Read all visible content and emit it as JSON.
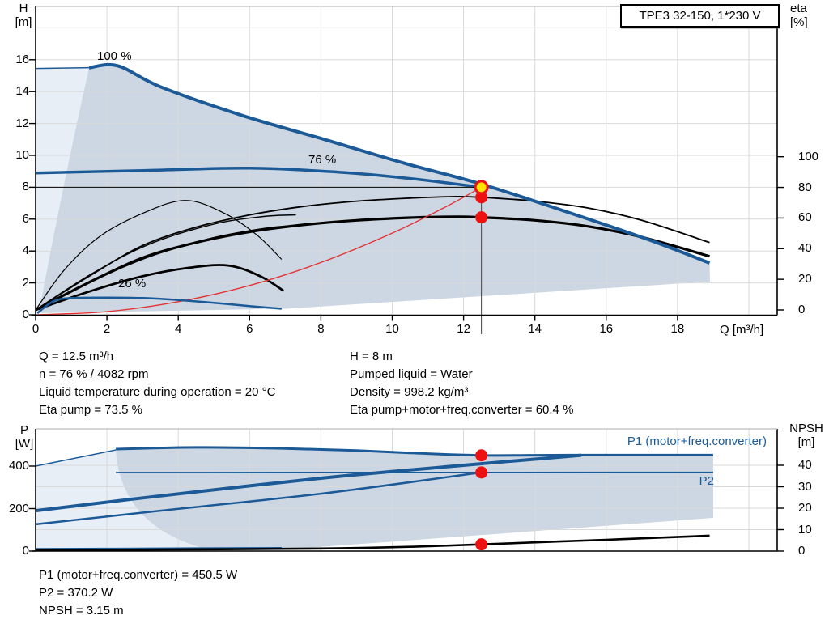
{
  "window": {
    "title_box": "TPE3 32-150, 1*230 V"
  },
  "top_chart": {
    "y_axis_unit_top": "H",
    "y_axis_unit_bottom": "[m]",
    "y2_axis_unit_top": "eta",
    "y2_axis_unit_bottom": "[%]",
    "x_axis_label": "Q [m³/h]",
    "h_ticks": [
      "16",
      "14",
      "12",
      "10",
      "8",
      "6",
      "4",
      "2",
      "0"
    ],
    "h_tick_values": [
      16,
      14,
      12,
      10,
      8,
      6,
      4,
      2,
      0
    ],
    "eta_ticks": [
      "100",
      "80",
      "60",
      "40",
      "20",
      "0"
    ],
    "eta_tick_values": [
      100,
      80,
      60,
      40,
      20,
      0
    ],
    "x_ticks": [
      "0",
      "2",
      "4",
      "6",
      "8",
      "10",
      "12",
      "14",
      "16",
      "18"
    ],
    "x_tick_values": [
      0,
      2,
      4,
      6,
      8,
      10,
      12,
      14,
      16,
      18
    ],
    "curve_labels": {
      "full_speed": "100 %",
      "current_speed": "76 %",
      "min_speed": "26 %"
    }
  },
  "info_block": {
    "left": [
      "Q = 12.5 m³/h",
      "n = 76 % / 4082 rpm",
      "Liquid temperature during operation = 20 °C",
      "Eta pump = 73.5 %"
    ],
    "right": [
      "H = 8 m",
      "Pumped liquid = Water",
      "Density = 998.2 kg/m³",
      "Eta pump+motor+freq.converter = 60.4 %"
    ]
  },
  "bottom_chart": {
    "y_axis_unit_top": "P",
    "y_axis_unit_bottom": "[W]",
    "y2_axis_unit_top": "NPSH",
    "y2_axis_unit_bottom": "[m]",
    "p_ticks": [
      "400",
      "200",
      "0"
    ],
    "p_tick_values": [
      400,
      200,
      0
    ],
    "npsh_ticks": [
      "40",
      "30",
      "20",
      "10",
      "0"
    ],
    "npsh_tick_values": [
      40,
      30,
      20,
      10,
      0
    ],
    "p1_label": "P1 (motor+freq.converter)",
    "p2_label": "P2"
  },
  "results_block": [
    "P1 (motor+freq.converter) = 450.5 W",
    "P2 = 370.2 W",
    "NPSH = 3.15 m"
  ],
  "operating_point": {
    "q_m3h": 12.5,
    "h_m": 8,
    "speed_pct": 76,
    "speed_rpm": 4082,
    "eta_pump_pct": 73.5,
    "eta_total_pct": 60.4,
    "p1_w": 450.5,
    "p2_w": 370.2,
    "npsh_m": 3.15
  },
  "colors": {
    "curve_blue": "#1b5a97",
    "fill_dark": "#cdd7e3",
    "fill_light": "#e8eef6",
    "grid": "#d9d9d9",
    "red": "#e23434",
    "dot_red": "#ee1111",
    "dot_yellow": "#ffe400"
  },
  "chart_data": [
    {
      "type": "line",
      "title": "TPE3 32-150, 1*230 V",
      "xlabel": "Q [m³/h]",
      "ylabel": "H [m]",
      "y2label": "eta [%]",
      "xlim": [
        0,
        20.8
      ],
      "ylim": [
        0,
        19.3
      ],
      "y2lim": [
        0,
        107
      ],
      "grid": true,
      "setpoint": {
        "q": 12.5,
        "h": 8
      },
      "series": [
        {
          "id": "c100flat",
          "name": "Head envelope left edge",
          "axis": "H",
          "x": [
            0,
            1.5
          ],
          "y": [
            15.45,
            15.5
          ]
        },
        {
          "id": "c100",
          "name": "Head curve 100 % speed",
          "axis": "H",
          "x": [
            1.5,
            2.3,
            3.5,
            5.8,
            8.1,
            10.35,
            12.5,
            14.9,
            17.2,
            18.9
          ],
          "y": [
            15.5,
            15.62,
            14.3,
            12.5,
            11.0,
            9.5,
            8.2,
            6.45,
            4.7,
            3.25
          ]
        },
        {
          "id": "c76",
          "name": "Head curve 76 % speed (current)",
          "axis": "H",
          "x": [
            0,
            3,
            6,
            8.5,
            10.5,
            12.5
          ],
          "y": [
            8.9,
            9.05,
            9.2,
            8.95,
            8.55,
            8.0
          ]
        },
        {
          "id": "c26",
          "name": "Head curve 26 % speed (min)",
          "axis": "H",
          "x": [
            0.05,
            0.5,
            1,
            2,
            3,
            4,
            5,
            6,
            6.9
          ],
          "y": [
            0.1,
            0.85,
            1.05,
            1.08,
            1.05,
            0.93,
            0.75,
            0.55,
            0.38
          ]
        },
        {
          "id": "etaP",
          "name": "Eta pump",
          "axis": "eta",
          "x": [
            0,
            1.5,
            3,
            4.5,
            6,
            7.5,
            9,
            10.5,
            11.8,
            12.5,
            14,
            15.5,
            17,
            18.9
          ],
          "y": [
            0,
            22,
            42,
            54,
            62,
            67.5,
            71,
            73,
            74,
            73.5,
            71,
            66.5,
            58.5,
            44
          ]
        },
        {
          "id": "etaT",
          "name": "Eta pump+motor+freq.converter",
          "axis": "eta",
          "x": [
            0,
            1.5,
            3,
            4.5,
            6,
            7.5,
            9,
            10.5,
            11.8,
            12.5,
            14,
            15.5,
            17,
            18.9
          ],
          "y": [
            0,
            18,
            34,
            44,
            51,
            55.5,
            58.5,
            60.2,
            60.8,
            60.4,
            58.5,
            54.5,
            47.5,
            35
          ]
        },
        {
          "id": "arc1",
          "name": "Eta pump full speed",
          "axis": "eta",
          "x": [
            0,
            0.8,
            1.8,
            3,
            4.2,
            5.3,
            6.2,
            6.9
          ],
          "y": [
            0,
            26,
            48,
            63,
            71.5,
            63,
            49,
            33
          ]
        },
        {
          "id": "fan1",
          "name": "Eta total min speed",
          "axis": "eta",
          "x": [
            0,
            1.5,
            3,
            4.3,
            5.4,
            6.3,
            6.95
          ],
          "y": [
            0,
            12,
            22,
            27.5,
            29,
            22,
            12.5
          ]
        },
        {
          "id": "fan2",
          "name": "Eta pump reduced speed",
          "axis": "eta",
          "x": [
            0,
            1.6,
            3.2,
            5,
            6.4,
            7.3
          ],
          "y": [
            0,
            24,
            43,
            56,
            61,
            62
          ]
        },
        {
          "id": "fan3",
          "name": "Eta total reduced speed",
          "axis": "eta",
          "x": [
            0,
            1.6,
            3.2,
            5,
            6.4,
            7.3
          ],
          "y": [
            0,
            19,
            35,
            47,
            53,
            55
          ]
        },
        {
          "id": "redc",
          "name": "Control curve to duty point",
          "axis": "H",
          "x": [
            0,
            2,
            4,
            6,
            8,
            10,
            11.5,
            12.5
          ],
          "y": [
            0,
            0.2,
            0.82,
            1.84,
            3.28,
            5.12,
            6.77,
            8.0
          ]
        }
      ]
    },
    {
      "type": "line",
      "xlabel": "Q [m³/h]",
      "ylabel": "P [W]",
      "y2label": "NPSH [m]",
      "xlim": [
        0,
        20.8
      ],
      "ylim": [
        0,
        575
      ],
      "y2lim": [
        0,
        57
      ],
      "grid": true,
      "series": [
        {
          "id": "p1left",
          "name": "P1 envelope left edge",
          "axis": "P",
          "x": [
            0,
            2.25
          ],
          "y": [
            400,
            476
          ]
        },
        {
          "id": "p1top",
          "name": "P1 (motor+freq.converter)",
          "axis": "P",
          "x": [
            2.25,
            4.5,
            7,
            9,
            10.5,
            12.5,
            15,
            19
          ],
          "y": [
            480,
            488,
            483,
            473,
            462,
            450.5,
            452,
            452
          ]
        },
        {
          "id": "p1diag",
          "name": "P1 rising branch",
          "axis": "P",
          "x": [
            0,
            3.5,
            8,
            12,
            15.3
          ],
          "y": [
            190,
            260,
            343,
            404,
            451
          ]
        },
        {
          "id": "p2flat",
          "name": "P2 flat line",
          "axis": "P",
          "x": [
            2.25,
            19
          ],
          "y": [
            370,
            371
          ]
        },
        {
          "id": "p2diag",
          "name": "P2 rising branch",
          "axis": "P",
          "x": [
            0,
            3.5,
            8,
            12.5
          ],
          "y": [
            126,
            190,
            270,
            370
          ]
        },
        {
          "id": "p26",
          "name": "P min speed",
          "axis": "P",
          "x": [
            0,
            4,
            6.9
          ],
          "y": [
            10,
            13,
            15
          ]
        },
        {
          "id": "npshC",
          "name": "NPSH",
          "axis": "NPSH",
          "x": [
            0,
            3.5,
            8,
            10.5,
            12.5,
            16,
            18.9
          ],
          "y": [
            0.4,
            0.7,
            1.2,
            2.0,
            3.15,
            5.3,
            7.2
          ]
        }
      ]
    }
  ]
}
